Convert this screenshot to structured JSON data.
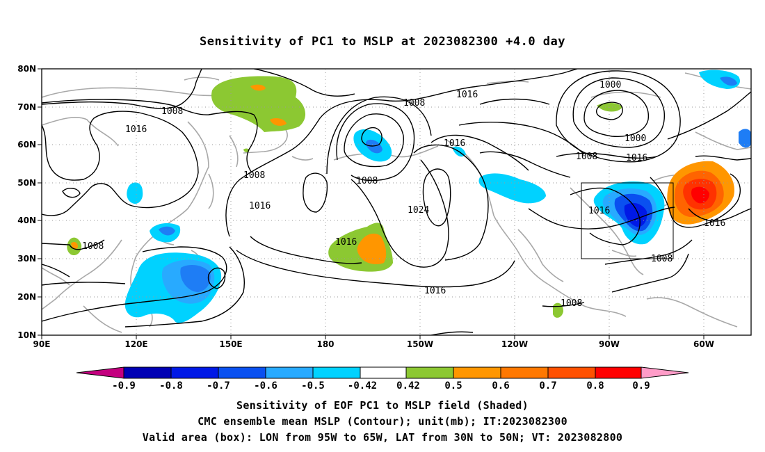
{
  "title": "Sensitivity of PC1 to MSLP at 2023082300 +4.0 day",
  "map": {
    "lat_labels": [
      "80N",
      "70N",
      "60N",
      "50N",
      "40N",
      "30N",
      "20N",
      "10N"
    ],
    "lon_labels": [
      "90E",
      "120E",
      "150E",
      "180",
      "150W",
      "120W",
      "90W",
      "60W"
    ],
    "contour_labels": [
      "1016",
      "1008",
      "1016",
      "1008",
      "1008",
      "1016",
      "1016",
      "1024",
      "1008",
      "1000",
      "1000",
      "1016",
      "1008",
      "1016",
      "1016",
      "1008",
      "1016",
      "1008",
      "1008"
    ],
    "box_label": "Valid area box"
  },
  "colorbar": {
    "labels": [
      "-0.9",
      "-0.8",
      "-0.7",
      "-0.6",
      "-0.5",
      "-0.42",
      "0.42",
      "0.5",
      "0.6",
      "0.7",
      "0.8",
      "0.9"
    ],
    "colors": [
      "#c4007f",
      "#0000b4",
      "#0019e6",
      "#0a50f0",
      "#1e7df5",
      "#28aaff",
      "#00d2ff",
      "#ffffff",
      "#8cc832",
      "#ff9600",
      "#ff6400",
      "#ff3200",
      "#ff0000",
      "#ff9cc8"
    ]
  },
  "captions": {
    "line1": "Sensitivity of EOF PC1 to MSLP field (Shaded)",
    "line2": "CMC ensemble mean MSLP (Contour); unit(mb); IT:2023082300",
    "line3": "Valid area (box): LON from 95W to 65W, LAT from 30N to 50N; VT: 2023082800"
  }
}
